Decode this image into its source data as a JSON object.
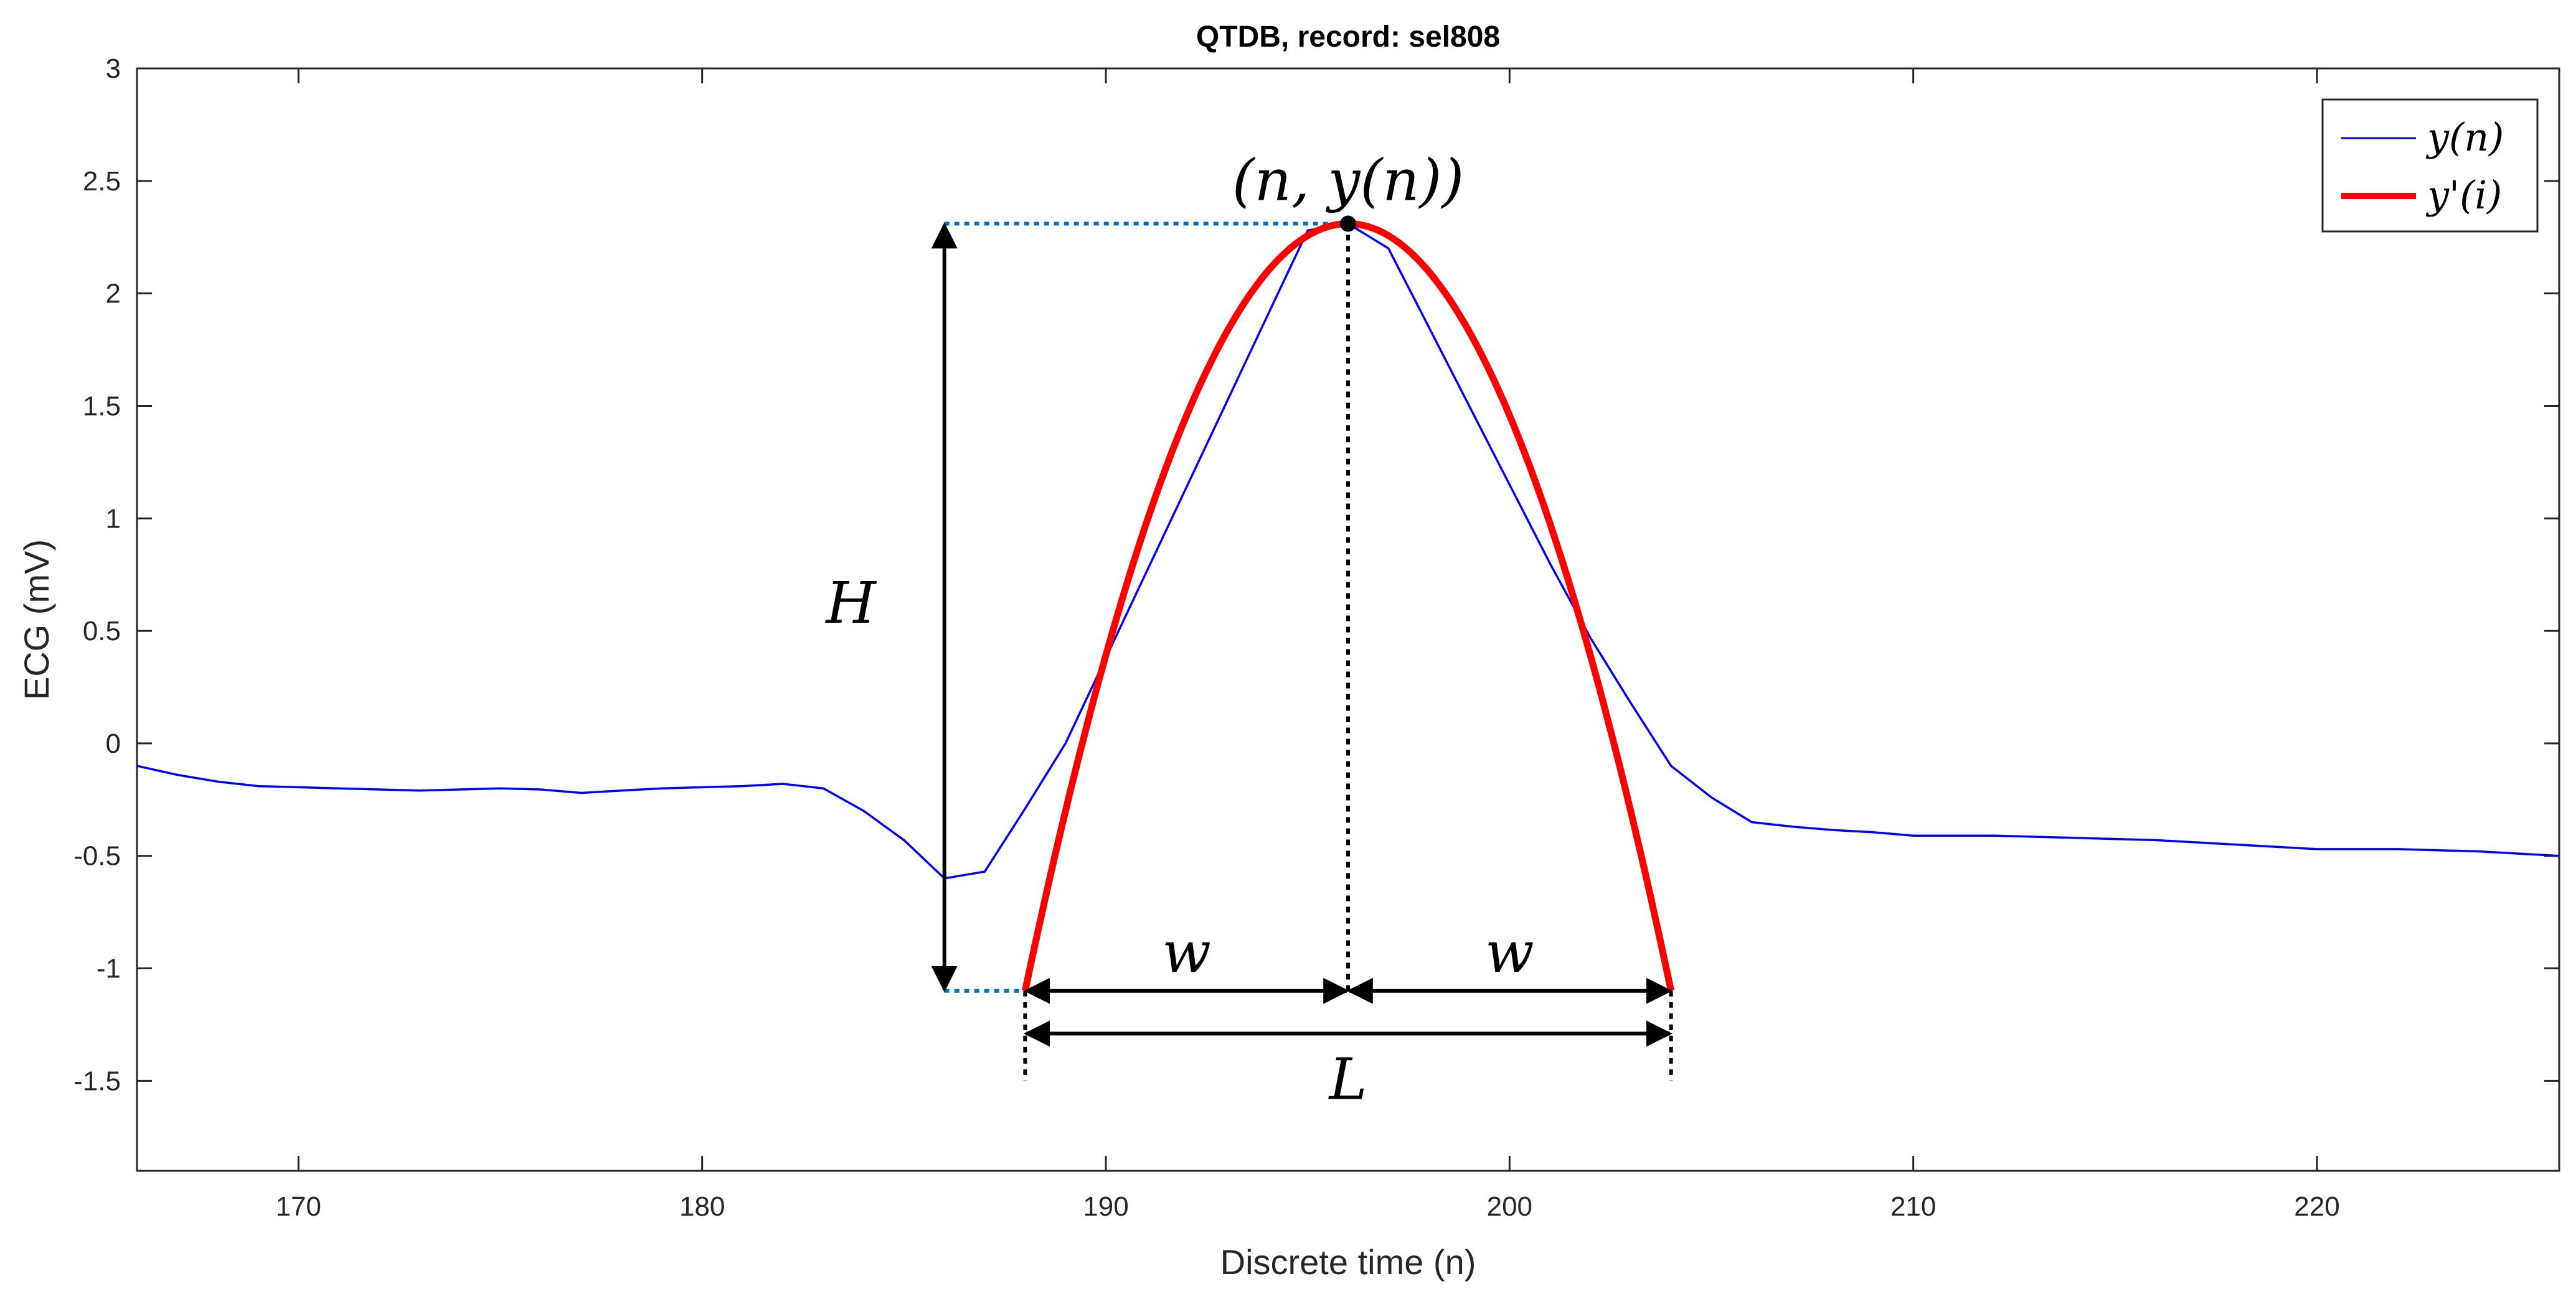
{
  "chart_data": {
    "type": "line",
    "title": "QTDB, record: sel808",
    "xlabel": "Discrete time (n)",
    "ylabel": "ECG (mV)",
    "xlim": [
      166,
      226
    ],
    "ylim": [
      -1.9,
      3
    ],
    "xticks": [
      170,
      180,
      190,
      200,
      210,
      220
    ],
    "yticks": [
      3,
      2.5,
      2,
      1.5,
      1,
      0.5,
      0,
      -0.5,
      -1,
      -1.5
    ],
    "ytick_labels": [
      "3",
      "2.5",
      "2",
      "1.5",
      "1",
      "0.5",
      "0",
      "-0.5",
      "-1",
      "-1.5"
    ],
    "grid": false,
    "legend_position": "top-right",
    "series": [
      {
        "name": "y(n)",
        "color": "#0000FF",
        "x": [
          166,
          167,
          168,
          169,
          170,
          171,
          172,
          173,
          174,
          175,
          176,
          177,
          178,
          179,
          180,
          181,
          182,
          183,
          184,
          185,
          186,
          187,
          188,
          189,
          190,
          191,
          192,
          193,
          194,
          195,
          196,
          197,
          198,
          199,
          200,
          201,
          202,
          203,
          204,
          205,
          206,
          207,
          208,
          209,
          210,
          211,
          212,
          213,
          214,
          215,
          216,
          217,
          218,
          219,
          220,
          221,
          222,
          223,
          224,
          225,
          226
        ],
        "y": [
          -0.1,
          -0.14,
          -0.17,
          -0.19,
          -0.195,
          -0.2,
          -0.205,
          -0.21,
          -0.205,
          -0.2,
          -0.205,
          -0.22,
          -0.21,
          -0.2,
          -0.195,
          -0.19,
          -0.18,
          -0.2,
          -0.3,
          -0.43,
          -0.6,
          -0.57,
          -0.29,
          0.0,
          0.38,
          0.76,
          1.14,
          1.52,
          1.9,
          2.28,
          2.31,
          2.2,
          1.85,
          1.5,
          1.15,
          0.8,
          0.47,
          0.18,
          -0.1,
          -0.24,
          -0.35,
          -0.37,
          -0.385,
          -0.395,
          -0.41,
          -0.41,
          -0.41,
          -0.415,
          -0.42,
          -0.425,
          -0.43,
          -0.44,
          -0.45,
          -0.46,
          -0.47,
          -0.47,
          -0.47,
          -0.475,
          -0.48,
          -0.49,
          -0.5
        ]
      },
      {
        "name": "y'(i)",
        "color": "#FF0000",
        "type": "parabola",
        "x_range": [
          188,
          204
        ],
        "vertex": [
          196,
          2.31
        ],
        "end_value": -1.1
      }
    ],
    "annotations": {
      "peak_label": "(n, y(n))",
      "peak_point": [
        196,
        2.31
      ],
      "height_label": "H",
      "height_range": [
        -1.1,
        2.31
      ],
      "height_x": 186,
      "half_width_label": "w",
      "width_label": "L",
      "width_range": [
        188,
        204
      ],
      "baseline_y": -1.1,
      "width_arrow_y": -1.29,
      "guide_bottom_y": -1.5
    }
  }
}
